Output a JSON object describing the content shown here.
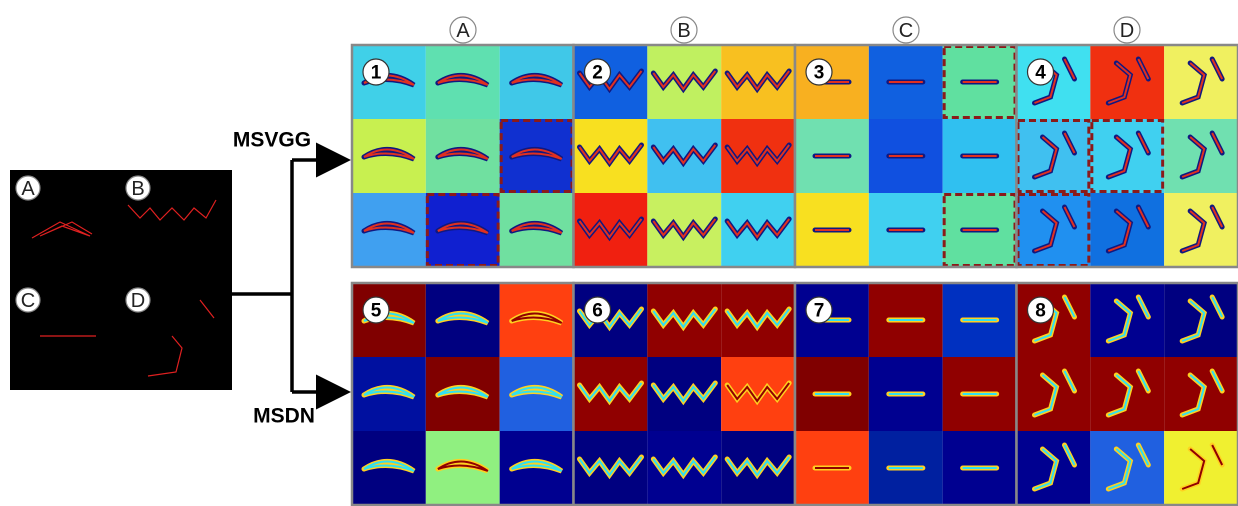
{
  "column_labels": [
    "A",
    "B",
    "C",
    "D"
  ],
  "input_panel": {
    "labels": [
      "A",
      "B",
      "C",
      "D"
    ]
  },
  "rows": [
    {
      "label": "MSVGG",
      "panels": [
        "1",
        "2",
        "3",
        "4"
      ]
    },
    {
      "label": "MSDN",
      "panels": [
        "5",
        "6",
        "7",
        "8"
      ]
    }
  ]
}
